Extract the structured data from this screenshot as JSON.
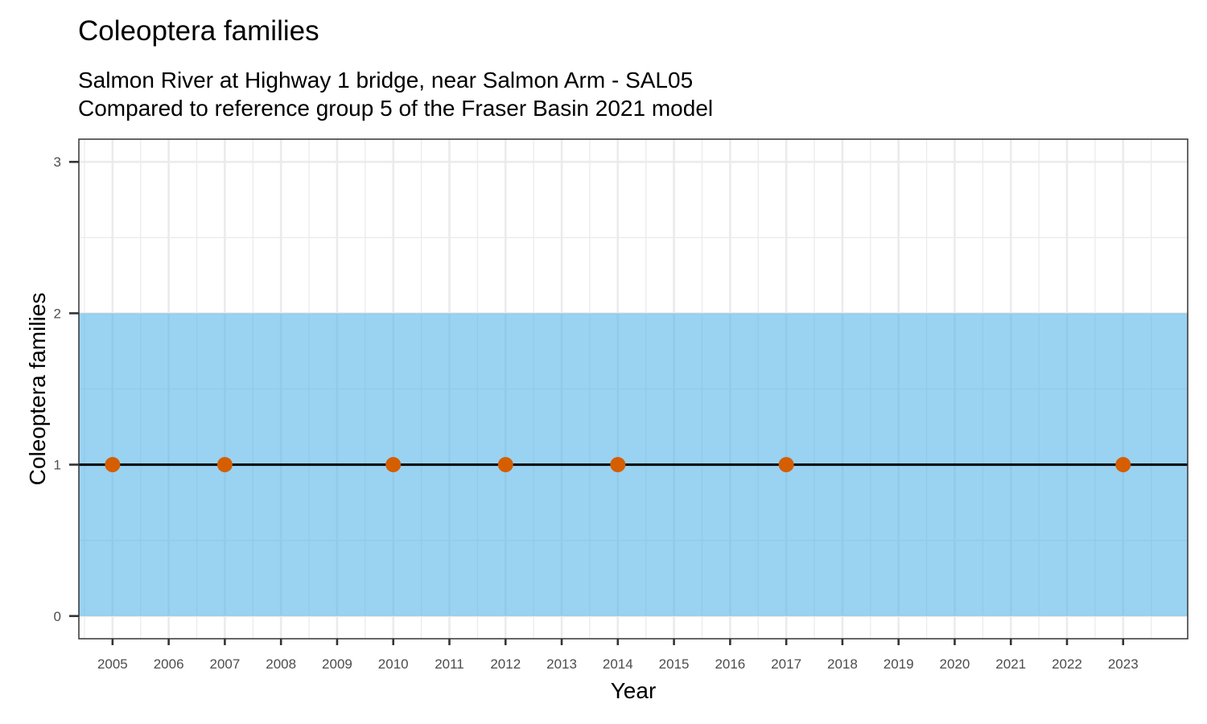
{
  "title": "Coleoptera families",
  "subtitle_line1": "Salmon River at Highway 1 bridge, near Salmon Arm - SAL05",
  "subtitle_line2": "Compared to reference group 5 of the Fraser Basin 2021 model",
  "chart_data": {
    "type": "scatter",
    "title": "Coleoptera families",
    "xlabel": "Year",
    "ylabel": "Coleoptera families",
    "x_ticks": [
      2005,
      2006,
      2007,
      2008,
      2009,
      2010,
      2011,
      2012,
      2013,
      2014,
      2015,
      2016,
      2017,
      2018,
      2019,
      2020,
      2021,
      2022,
      2023
    ],
    "y_ticks": [
      0,
      1,
      2,
      3
    ],
    "xlim": [
      2004.4,
      2024.15
    ],
    "ylim": [
      -0.15,
      3.15
    ],
    "grid": true,
    "series": [
      {
        "x": [
          2005,
          2007,
          2010,
          2012,
          2014,
          2017,
          2023
        ],
        "y": [
          1,
          1,
          1,
          1,
          1,
          1,
          1
        ],
        "color": "#d55e00"
      }
    ],
    "reference_line": {
      "y": 1,
      "color": "#000000"
    },
    "reference_band": {
      "ymin": 0,
      "ymax": 2,
      "color": "#56b4e9"
    }
  }
}
